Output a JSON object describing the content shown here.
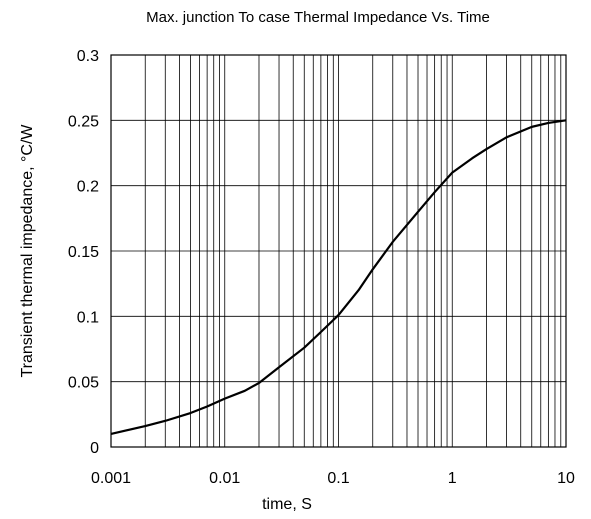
{
  "chart_data": {
    "type": "line",
    "title": "Max. junction To case Thermal Impedance Vs. Time",
    "xlabel": "time, S",
    "ylabel": "Transient thermal impedance, °C/W",
    "xscale": "log",
    "xlim": [
      0.001,
      10
    ],
    "ylim": [
      0,
      0.3
    ],
    "grid": true,
    "x_ticks": [
      0.001,
      0.01,
      0.1,
      1,
      10
    ],
    "x_tick_labels": [
      "0.001",
      "0.01",
      "0.1",
      "1",
      "10"
    ],
    "y_ticks": [
      0,
      0.05,
      0.1,
      0.15,
      0.2,
      0.25,
      0.3
    ],
    "y_tick_labels": [
      "0",
      "0.05",
      "0.1",
      "0.15",
      "0.2",
      "0.25",
      "0.3"
    ],
    "series": [
      {
        "x": [
          0.001,
          0.002,
          0.003,
          0.005,
          0.007,
          0.01,
          0.015,
          0.02,
          0.03,
          0.05,
          0.07,
          0.1,
          0.15,
          0.2,
          0.3,
          0.5,
          0.7,
          1,
          1.5,
          2,
          3,
          5,
          7,
          10
        ],
        "values": [
          0.01,
          0.016,
          0.02,
          0.026,
          0.031,
          0.037,
          0.043,
          0.049,
          0.061,
          0.076,
          0.088,
          0.101,
          0.12,
          0.136,
          0.157,
          0.18,
          0.195,
          0.21,
          0.221,
          0.228,
          0.237,
          0.245,
          0.248,
          0.25
        ]
      }
    ]
  }
}
